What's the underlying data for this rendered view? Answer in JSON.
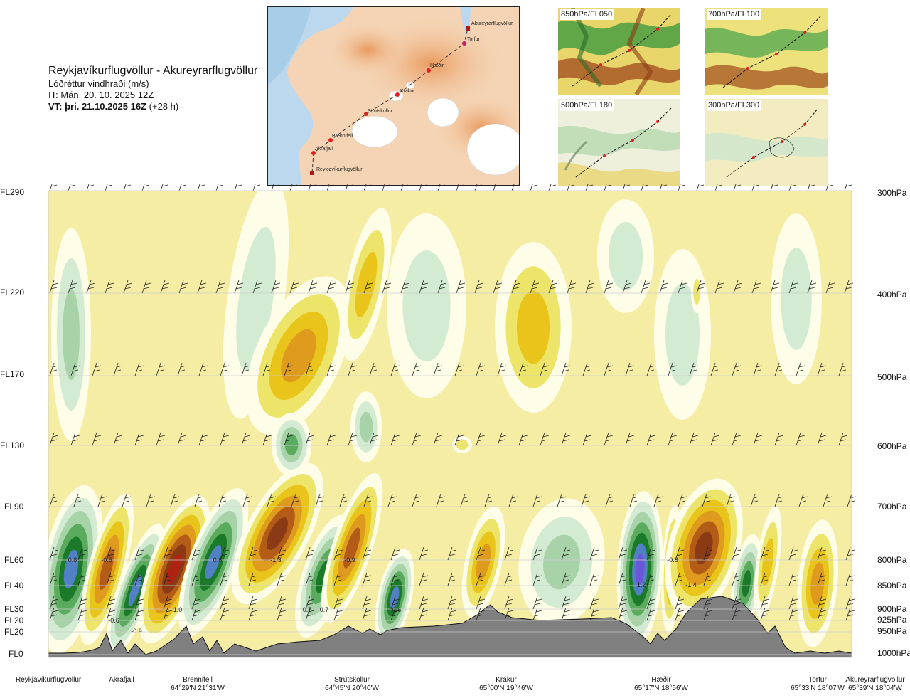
{
  "title": {
    "route": "Reykjavíkurflugvöllur - Akureyrarflugvöllur",
    "parameter": "Lóðréttur vindhraði (m/s)",
    "issue_time": "IT: Mán. 20. 10. 2025 12Z",
    "valid_time_bold": "VT: þri. 21.10.2025 16Z",
    "valid_time_offset": "(+28 h)"
  },
  "route_map": {
    "points": [
      "Akureyrarflugvöllur",
      "Torfur",
      "Hæðir",
      "Krákur",
      "Strútskollur",
      "Brennifell",
      "Akrafjall",
      "Reykjavíkurflugvöllur"
    ]
  },
  "thumbnails": [
    {
      "label": "850hPa/FL050"
    },
    {
      "label": "700hPa/FL100"
    },
    {
      "label": "500hPa/FL180"
    },
    {
      "label": "300hPa/FL300"
    }
  ],
  "chart_data": {
    "type": "heatmap",
    "title": "Lóðréttur vindhraði (m/s)",
    "levels": [
      {
        "fl": "FL290",
        "hpa": "300hPa"
      },
      {
        "fl": "FL220",
        "hpa": "400hPa"
      },
      {
        "fl": "FL170",
        "hpa": "500hPa"
      },
      {
        "fl": "FL130",
        "hpa": "600hPa"
      },
      {
        "fl": "FL90",
        "hpa": "700hPa"
      },
      {
        "fl": "FL60",
        "hpa": "800hPa"
      },
      {
        "fl": "FL40",
        "hpa": "850hPa"
      },
      {
        "fl": "FL30",
        "hpa": "900hPa"
      },
      {
        "fl": "FL20",
        "hpa": "925hPa"
      },
      {
        "fl": "FL20",
        "hpa": "950hPa"
      },
      {
        "fl": "FL0",
        "hpa": "1000hPa"
      }
    ],
    "annotations": [
      "0.8",
      "-0.5",
      "-0.9",
      "1.0",
      "-1.3",
      "0.6",
      "-0.9",
      "-0.6",
      "0.7",
      "0.7",
      "0.6",
      "1.2",
      "-0.8",
      "-1.4"
    ],
    "stations": [
      {
        "name": "Reykjavíkurflugvöllur",
        "coord": ""
      },
      {
        "name": "Akrafjall",
        "coord": ""
      },
      {
        "name": "Brennifell",
        "coord": "64°29'N 21°31'W"
      },
      {
        "name": "Strútskollur",
        "coord": "64°45'N 20°40'W"
      },
      {
        "name": "Krákur",
        "coord": "65°00'N 19°46'W"
      },
      {
        "name": "Hæðir",
        "coord": "65°17'N 18°56'W"
      },
      {
        "name": "Torfur",
        "coord": "65°33'N 18°07'W"
      },
      {
        "name": "Akureyrarflugvöllur",
        "coord": "65°39'N 18°04'W"
      }
    ]
  },
  "colors": {
    "neutral": "#f6eda5",
    "white_band": "#fdfde8",
    "up_1": "#d3ebd2",
    "up_2": "#a8d3a8",
    "up_3": "#5bab5e",
    "up_4": "#1a7a2a",
    "up_5": "#5280c4",
    "up_6": "#6a56d8",
    "down_1": "#ede56a",
    "down_2": "#e9c51c",
    "down_3": "#de9b1e",
    "down_4": "#b35c18",
    "down_5": "#8a3a14",
    "down_6": "#b02212",
    "terrain": "#808080"
  }
}
